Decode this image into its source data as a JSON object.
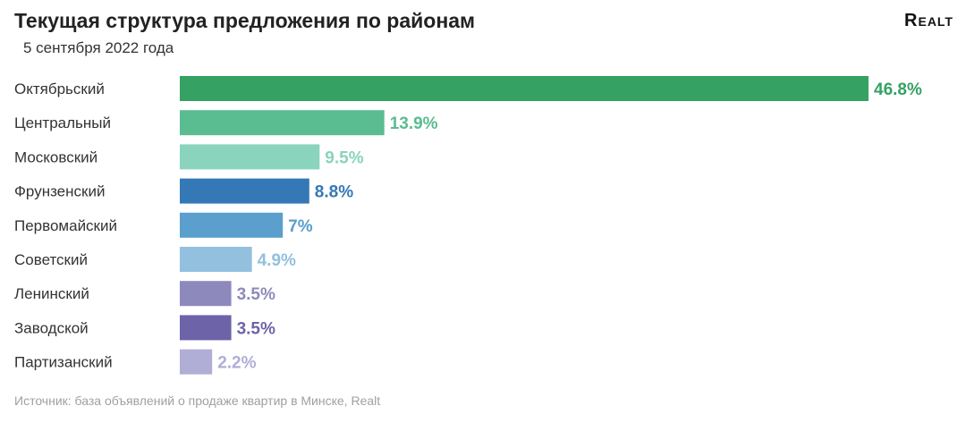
{
  "header": {
    "title": "Текущая структура предложения по районам",
    "subtitle": "5 сентября 2022 года",
    "logo_text": "Realt"
  },
  "footer": {
    "source": "Источник: база объявлений о продаже квартир в Минске, Realt"
  },
  "chart_data": {
    "type": "bar",
    "orientation": "horizontal",
    "title": "Текущая структура предложения по районам",
    "subtitle": "5 сентября 2022 года",
    "categories": [
      "Октябрьский",
      "Центральный",
      "Московский",
      "Фрунзенский",
      "Первомайский",
      "Советский",
      "Ленинский",
      "Заводской",
      "Партизанский"
    ],
    "values": [
      46.8,
      13.9,
      9.5,
      8.8,
      7,
      4.9,
      3.5,
      3.5,
      2.2
    ],
    "value_labels": [
      "46.8%",
      "13.9%",
      "9.5%",
      "8.8%",
      "7%",
      "4.9%",
      "3.5%",
      "3.5%",
      "2.2%"
    ],
    "colors": [
      "#35a163",
      "#5abc91",
      "#8ad3bc",
      "#3478b5",
      "#5a9fcd",
      "#92c0de",
      "#8e89bd",
      "#6c63a8",
      "#b0aed6"
    ],
    "unit": "%",
    "xlim": [
      0,
      46.8
    ],
    "grid": false,
    "legend": "none"
  }
}
